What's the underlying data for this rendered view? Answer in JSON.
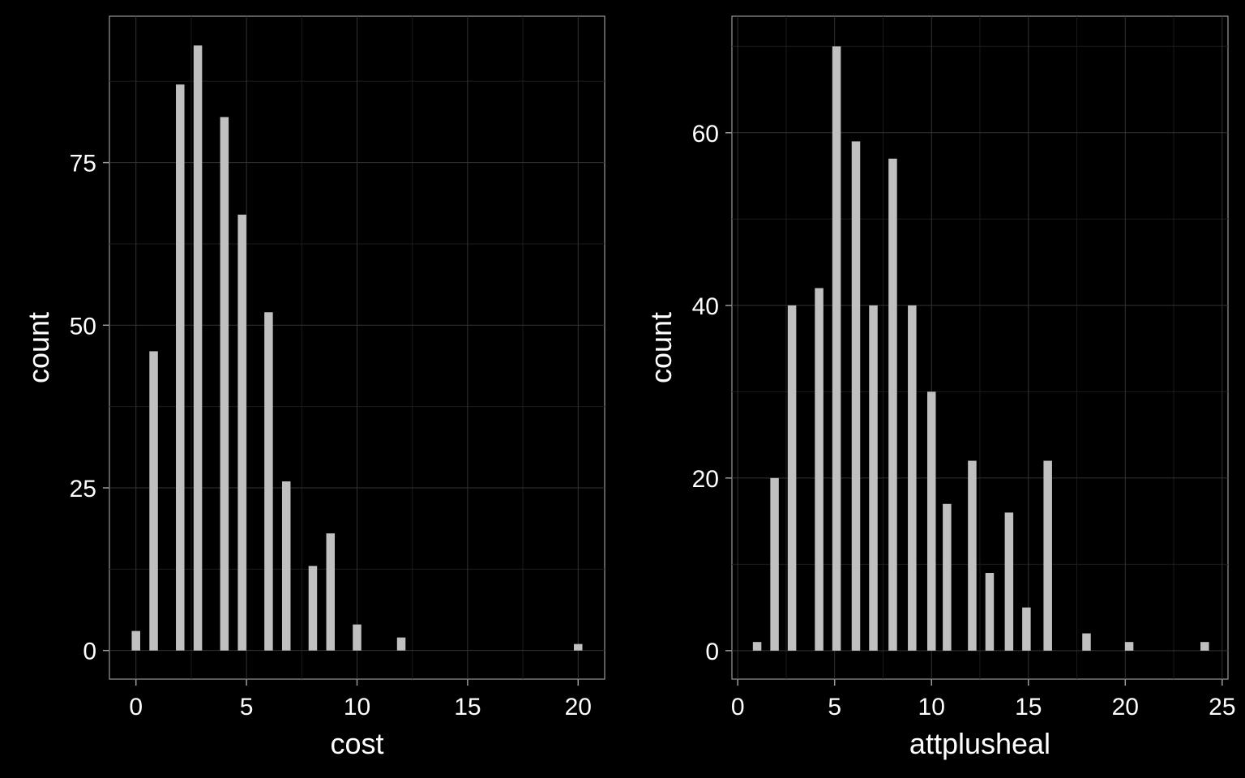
{
  "chart_data": [
    {
      "type": "bar",
      "xlabel": "cost",
      "ylabel": "count",
      "xlim": [
        -1.2,
        21.2
      ],
      "ylim": [
        -4.4,
        97.5
      ],
      "xticks": [
        0,
        5,
        10,
        15,
        20
      ],
      "yticks": [
        0,
        25,
        50,
        75
      ],
      "grid": true,
      "x": [
        0,
        0.8,
        2,
        2.8,
        4,
        4.8,
        6,
        6.8,
        8,
        8.8,
        10,
        12,
        20
      ],
      "values": [
        3,
        46,
        87,
        93,
        82,
        67,
        52,
        26,
        13,
        18,
        4,
        2,
        1
      ],
      "bar_color": "#c0c0c0",
      "background": "#000000"
    },
    {
      "type": "bar",
      "xlabel": "attplusheal",
      "ylabel": "count",
      "xlim": [
        -0.3,
        25.3
      ],
      "ylim": [
        -3.3,
        73.5
      ],
      "xticks": [
        0,
        5,
        10,
        15,
        20,
        25
      ],
      "yticks": [
        0,
        20,
        40,
        60
      ],
      "grid": true,
      "x": [
        1,
        1.9,
        2.8,
        4.2,
        5.1,
        6.1,
        7,
        8,
        9,
        10,
        10.8,
        12.1,
        13,
        14,
        14.9,
        16,
        18,
        20.2,
        24.1
      ],
      "values": [
        1,
        20,
        40,
        42,
        70,
        59,
        40,
        57,
        40,
        30,
        17,
        22,
        9,
        16,
        5,
        22,
        2,
        1,
        1
      ],
      "bar_color": "#c0c0c0",
      "background": "#000000"
    }
  ]
}
